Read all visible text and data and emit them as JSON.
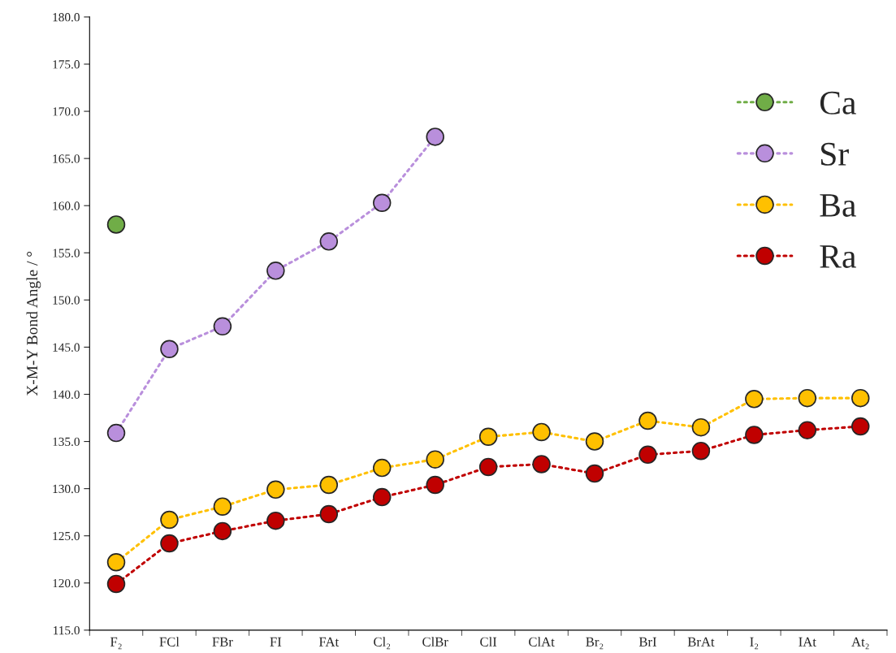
{
  "chart_data": {
    "type": "line",
    "ylabel": "X-M-Y Bond Angle / °",
    "categories": [
      "F₂",
      "FCl",
      "FBr",
      "FI",
      "FAt",
      "Cl₂",
      "ClBr",
      "ClI",
      "ClAt",
      "Br₂",
      "BrI",
      "BrAt",
      "I₂",
      "IAt",
      "At₂"
    ],
    "series": [
      {
        "name": "Ca",
        "color": "#70ad47",
        "values": [
          158.0,
          null,
          null,
          null,
          null,
          null,
          null,
          null,
          null,
          null,
          null,
          null,
          null,
          null,
          null
        ]
      },
      {
        "name": "Sr",
        "color": "#b98fdc",
        "values": [
          135.9,
          144.8,
          147.2,
          153.1,
          156.2,
          160.3,
          167.3,
          null,
          null,
          null,
          null,
          null,
          null,
          null,
          null
        ]
      },
      {
        "name": "Ba",
        "color": "#ffc000",
        "values": [
          122.2,
          126.7,
          128.1,
          129.9,
          130.4,
          132.2,
          133.1,
          135.5,
          136.0,
          135.0,
          137.2,
          136.5,
          139.5,
          139.6,
          139.6
        ]
      },
      {
        "name": "Ra",
        "color": "#c00000",
        "values": [
          119.9,
          124.2,
          125.5,
          126.6,
          127.3,
          129.1,
          130.4,
          132.3,
          132.6,
          131.6,
          133.6,
          134.0,
          135.7,
          136.2,
          136.6
        ]
      }
    ],
    "ylim": [
      115,
      180
    ],
    "yticks": [
      {
        "value": 115,
        "label": "115.0"
      },
      {
        "value": 120,
        "label": "120.0"
      },
      {
        "value": 125,
        "label": "125.0"
      },
      {
        "value": 130,
        "label": "130.0"
      },
      {
        "value": 135,
        "label": "135.0"
      },
      {
        "value": 140,
        "label": "140.0"
      },
      {
        "value": 145,
        "label": "145.0"
      },
      {
        "value": 150,
        "label": "150.0"
      },
      {
        "value": 155,
        "label": "155.0"
      },
      {
        "value": 160,
        "label": "160.0"
      },
      {
        "value": 165,
        "label": "165.0"
      },
      {
        "value": 170,
        "label": "170.0"
      },
      {
        "value": 175,
        "label": "175.0"
      },
      {
        "value": 180,
        "label": "180.0"
      }
    ],
    "grid": false,
    "legend": "top right",
    "marker": "circle",
    "line_style": "dotted"
  }
}
